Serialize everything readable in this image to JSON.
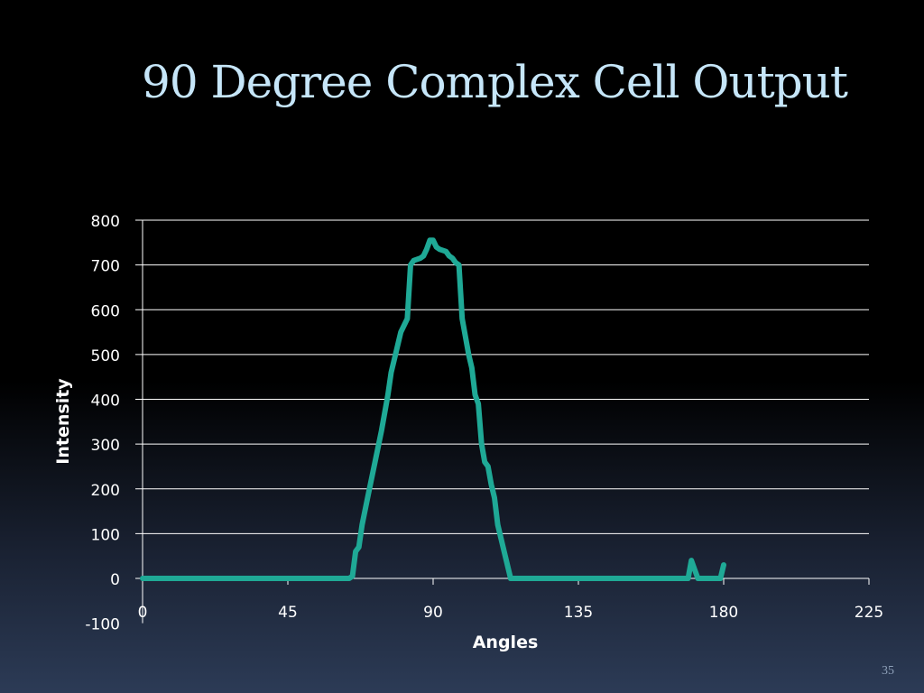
{
  "slide": {
    "title": "90 Degree Complex Cell Output",
    "page_number": "35"
  },
  "chart_data": {
    "type": "line",
    "xlabel": "Angles",
    "ylabel": "Intensity",
    "xlim": [
      0,
      225
    ],
    "ylim": [
      -100,
      800
    ],
    "x_ticks": [
      0,
      45,
      90,
      135,
      180,
      225
    ],
    "y_ticks": [
      -100,
      0,
      100,
      200,
      300,
      400,
      500,
      600,
      700,
      800
    ],
    "grid": true,
    "legend": "none",
    "colors": {
      "line": "#1fa996",
      "grid": "#ffffff",
      "text": "#ffffff"
    },
    "series": [
      {
        "x": [
          0,
          10,
          20,
          30,
          40,
          50,
          55,
          60,
          64,
          65,
          66,
          67,
          68,
          70,
          72,
          74,
          76,
          77,
          78,
          80,
          82,
          83,
          84,
          86,
          87,
          88,
          89,
          90,
          91,
          92,
          94,
          95,
          96,
          97,
          98,
          99,
          100,
          101,
          102,
          103,
          104,
          105,
          106,
          107,
          108,
          109,
          110,
          112,
          114,
          115,
          116,
          117,
          120,
          130,
          140,
          150,
          160,
          168,
          169,
          170,
          171,
          172,
          175,
          178,
          179,
          180
        ],
        "y": [
          0,
          0,
          0,
          0,
          0,
          0,
          0,
          0,
          0,
          5,
          60,
          70,
          120,
          190,
          260,
          330,
          410,
          460,
          490,
          550,
          580,
          700,
          710,
          715,
          720,
          735,
          755,
          755,
          740,
          735,
          730,
          720,
          715,
          705,
          700,
          580,
          540,
          500,
          470,
          410,
          390,
          300,
          260,
          250,
          210,
          180,
          120,
          60,
          0,
          0,
          0,
          0,
          0,
          0,
          0,
          0,
          0,
          0,
          0,
          40,
          20,
          0,
          0,
          0,
          0,
          30
        ]
      }
    ]
  }
}
